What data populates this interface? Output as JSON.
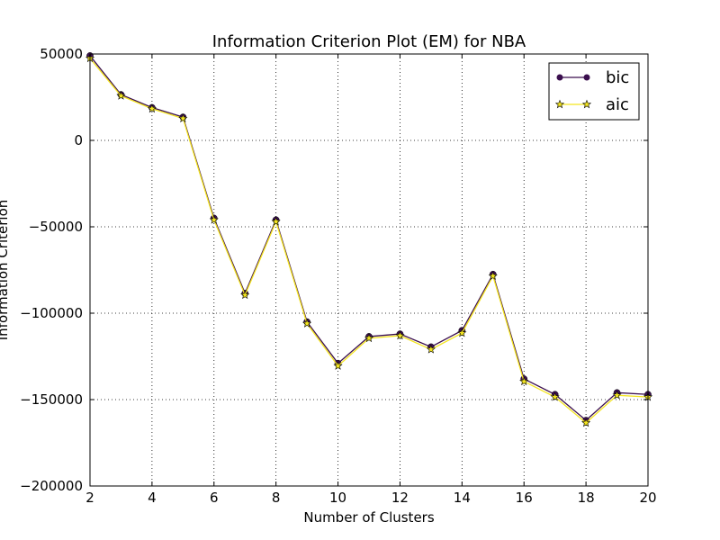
{
  "chart_data": {
    "type": "line",
    "title": "Information Criterion Plot (EM) for NBA",
    "xlabel": "Number of Clusters",
    "ylabel": "Information Criterion",
    "xlim": [
      2,
      20
    ],
    "ylim": [
      -200000,
      50000
    ],
    "grid": true,
    "legend_position": "top-right",
    "x_ticks": [
      2,
      4,
      6,
      8,
      10,
      12,
      14,
      16,
      18,
      20
    ],
    "y_ticks": [
      50000,
      0,
      -50000,
      -100000,
      -150000,
      -200000
    ],
    "x_tick_labels": [
      "2",
      "4",
      "6",
      "8",
      "10",
      "12",
      "14",
      "16",
      "18",
      "20"
    ],
    "y_tick_labels": [
      "50000",
      "0",
      "−50000",
      "−100000",
      "−150000",
      "−200000"
    ],
    "x": [
      2,
      3,
      4,
      5,
      6,
      7,
      8,
      9,
      10,
      11,
      12,
      13,
      14,
      15,
      16,
      17,
      18,
      19,
      20
    ],
    "series": [
      {
        "name": "bic",
        "color": "#3b0f4e",
        "marker": "circle",
        "values": [
          49000,
          26500,
          19000,
          13500,
          -45000,
          -88500,
          -46000,
          -105000,
          -129000,
          -113500,
          -112000,
          -119500,
          -110000,
          -77500,
          -138000,
          -147000,
          -162000,
          -146000,
          -147000
        ]
      },
      {
        "name": "aic",
        "color": "#f4e51f",
        "marker": "star",
        "values": [
          47500,
          25800,
          18300,
          12700,
          -46000,
          -89500,
          -47000,
          -106000,
          -130500,
          -114500,
          -113000,
          -121000,
          -111500,
          -78500,
          -139500,
          -148500,
          -163500,
          -147500,
          -148500
        ]
      }
    ]
  }
}
